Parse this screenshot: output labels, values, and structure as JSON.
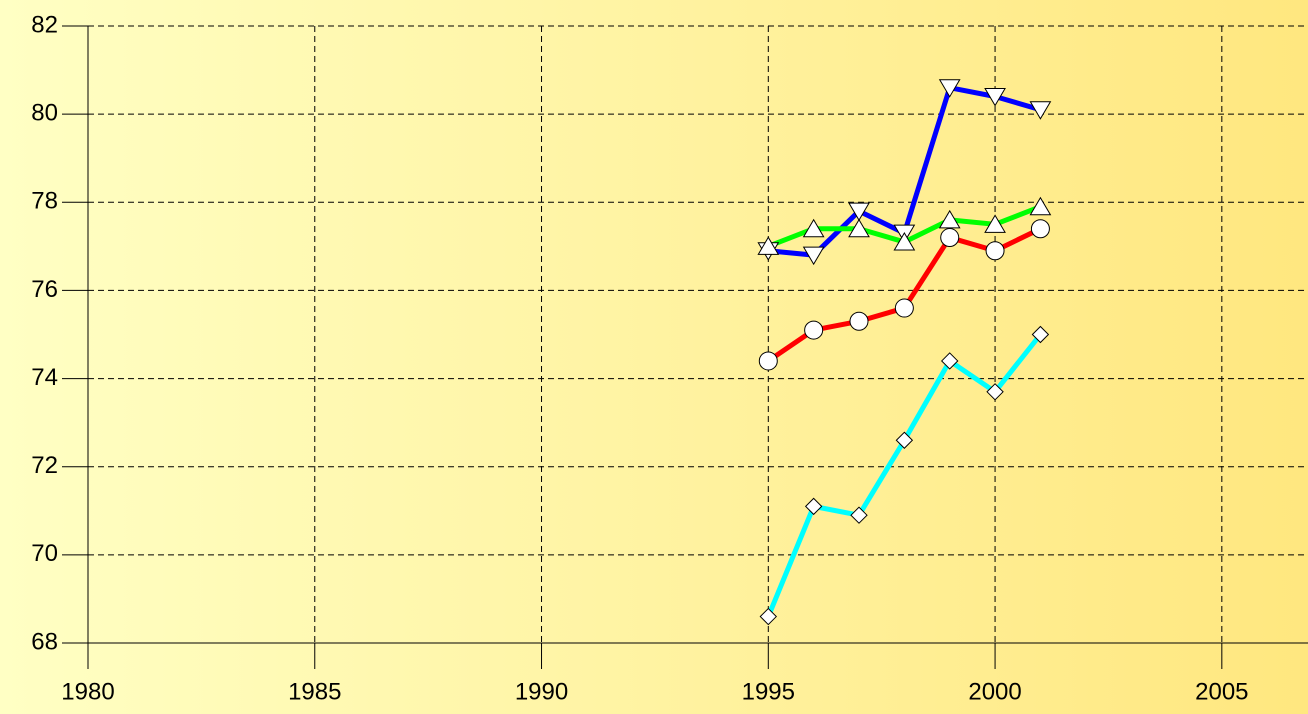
{
  "chart_data": {
    "type": "line",
    "x": [
      1995,
      1996,
      1997,
      1998,
      1999,
      2000,
      2001
    ],
    "series": [
      {
        "color": "#0000ff",
        "marker": "triangle-down",
        "values": [
          76.9,
          76.8,
          77.8,
          77.3,
          80.6,
          80.4,
          80.1
        ]
      },
      {
        "color": "#00ff00",
        "marker": "triangle-up",
        "values": [
          77.0,
          77.4,
          77.4,
          77.1,
          77.6,
          77.5,
          77.9
        ]
      },
      {
        "color": "#ff0000",
        "marker": "circle",
        "values": [
          74.4,
          75.1,
          75.3,
          75.6,
          77.2,
          76.9,
          77.4
        ]
      },
      {
        "color": "#00ffff",
        "marker": "diamond",
        "values": [
          68.6,
          71.1,
          70.9,
          72.6,
          74.4,
          73.7,
          75.0
        ]
      }
    ],
    "xlim": [
      1980,
      2006.9
    ],
    "xticks": [
      1980,
      1985,
      1990,
      1995,
      2000,
      2005
    ],
    "ylim": [
      68,
      82
    ],
    "yticks": [
      68,
      70,
      72,
      74,
      76,
      78,
      80,
      82
    ],
    "grid": true
  }
}
